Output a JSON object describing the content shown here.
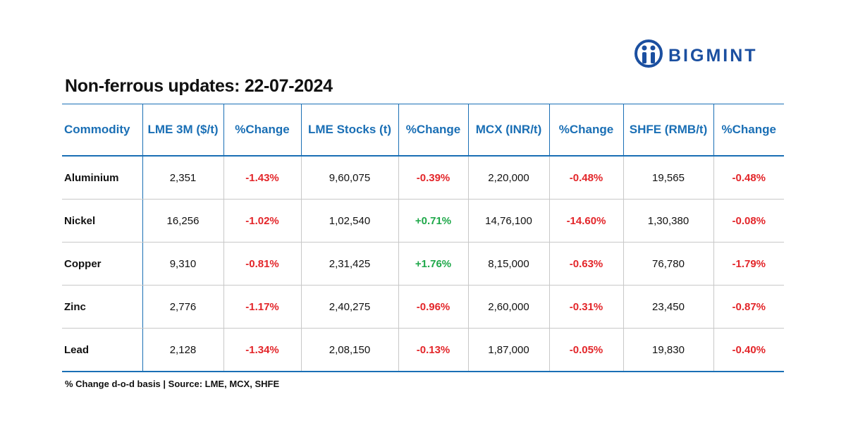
{
  "brand": "BIGMINT",
  "header": {
    "title": "Non-ferrous updates: 22-07-2024"
  },
  "table": {
    "columns": [
      "Commodity",
      "LME 3M ($/t)",
      "%Change",
      "LME Stocks (t)",
      "%Change",
      "MCX (INR/t)",
      "%Change",
      "SHFE (RMB/t)",
      "%Change"
    ],
    "rows": [
      [
        "Aluminium",
        "2,351",
        "-1.43%",
        "9,60,075",
        "-0.39%",
        "2,20,000",
        "-0.48%",
        "19,565",
        "-0.48%"
      ],
      [
        "Nickel",
        "16,256",
        "-1.02%",
        "1,02,540",
        "+0.71%",
        "14,76,100",
        "-14.60%",
        "1,30,380",
        "-0.08%"
      ],
      [
        "Copper",
        "9,310",
        "-0.81%",
        "2,31,425",
        "+1.76%",
        "8,15,000",
        "-0.63%",
        "76,780",
        "-1.79%"
      ],
      [
        "Zinc",
        "2,776",
        "-1.17%",
        "2,40,275",
        "-0.96%",
        "2,60,000",
        "-0.31%",
        "23,450",
        "-0.87%"
      ],
      [
        "Lead",
        "2,128",
        "-1.34%",
        "2,08,150",
        "-0.13%",
        "1,87,000",
        "-0.05%",
        "19,830",
        "-0.40%"
      ]
    ]
  },
  "footnote": "% Change d-o-d basis | Source: LME, MCX, SHFE"
}
